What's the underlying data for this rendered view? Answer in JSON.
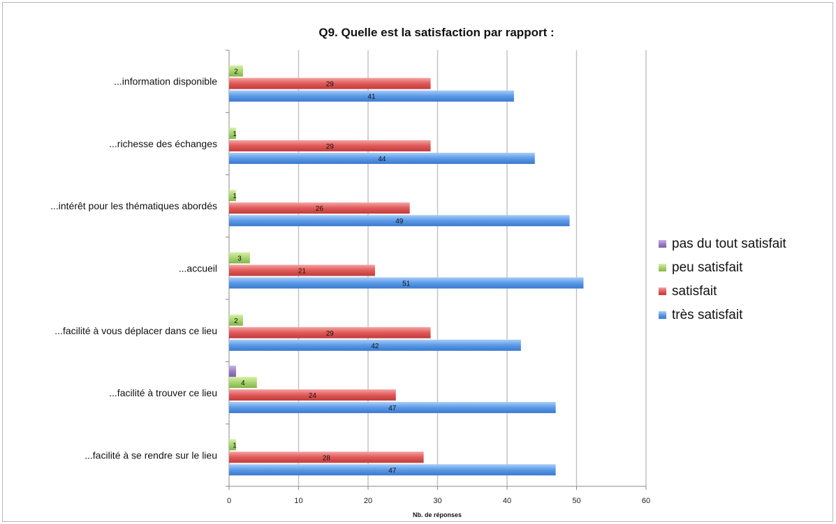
{
  "chart_data": {
    "type": "bar",
    "orientation": "horizontal",
    "title": "Q9. Quelle est la satisfaction par rapport :",
    "xlabel": "Nb. de réponses",
    "ylabel": "",
    "xlim": [
      0,
      60
    ],
    "xticks": [
      "0",
      "10",
      "20",
      "30",
      "40",
      "50",
      "60"
    ],
    "grid": "vertical",
    "legend_position": "right",
    "categories": [
      "...information disponible",
      "...richesse des échanges",
      "...intérêt pour les thématiques abordés",
      "...accueil",
      "...facilité à vous déplacer dans ce lieu",
      "...facilité à trouver ce lieu",
      "...facilité à se rendre sur le lieu"
    ],
    "series": [
      {
        "name": "pas du tout satisfait",
        "color": "#9b7fc4",
        "values": [
          0,
          0,
          0,
          0,
          0,
          1,
          0
        ],
        "labels": [
          "",
          "",
          "",
          "",
          "",
          "",
          ""
        ]
      },
      {
        "name": "peu satisfait",
        "color": "#a9d46f",
        "values": [
          2,
          1,
          1,
          3,
          2,
          4,
          1
        ],
        "labels": [
          "2",
          "1",
          "1",
          "3",
          "2",
          "4",
          "1"
        ]
      },
      {
        "name": "satisfait",
        "color": "#e05a5a",
        "values": [
          29,
          29,
          26,
          21,
          29,
          24,
          28
        ],
        "labels": [
          "29",
          "29",
          "26",
          "21",
          "29",
          "24",
          "28"
        ]
      },
      {
        "name": "très satisfait",
        "color": "#5b9ae8",
        "values": [
          41,
          44,
          49,
          51,
          42,
          47,
          47
        ],
        "labels": [
          "41",
          "44",
          "49",
          "51",
          "42",
          "47",
          "47"
        ]
      }
    ]
  }
}
